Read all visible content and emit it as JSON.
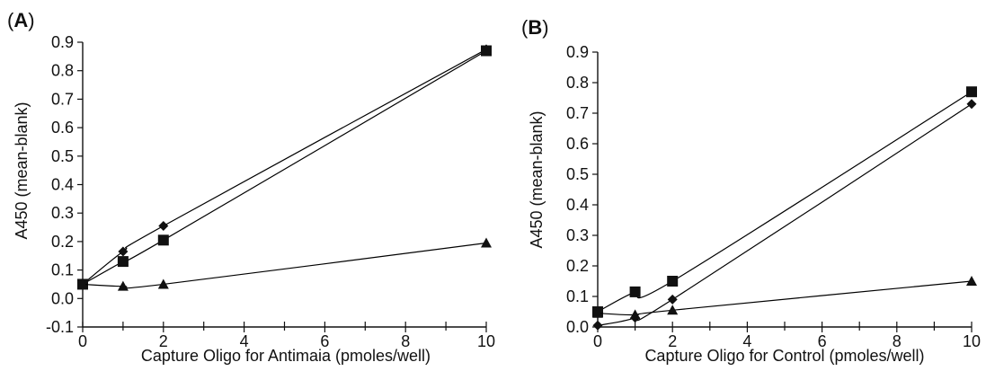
{
  "panels": [
    {
      "label_open": "(",
      "label_letter": "A",
      "label_close": ")"
    },
    {
      "label_open": "(",
      "label_letter": "B",
      "label_close": ")"
    }
  ],
  "chart_data": [
    {
      "type": "line",
      "xlabel": "Capture Oligo for Antimaia (pmoles/well)",
      "ylabel": "A450 (mean-blank)",
      "xlim": [
        0,
        10
      ],
      "ylim": [
        -0.1,
        0.9
      ],
      "xticks": [
        0,
        2,
        4,
        6,
        8,
        10
      ],
      "yticks": [
        -0.1,
        0.0,
        0.1,
        0.2,
        0.3,
        0.4,
        0.5,
        0.6,
        0.7,
        0.8,
        0.9
      ],
      "ytick_labels": [
        "-0.1",
        "0.0",
        "0.1",
        "0.2",
        "0.3",
        "0.4",
        "0.5",
        "0.6",
        "0.7",
        "0.8",
        "0.9"
      ],
      "x": [
        0,
        1,
        2,
        10
      ],
      "series": [
        {
          "marker": "diamond",
          "values": [
            0.05,
            0.165,
            0.255,
            0.875
          ]
        },
        {
          "marker": "square",
          "values": [
            0.05,
            0.13,
            0.205,
            0.87
          ]
        },
        {
          "marker": "triangle",
          "values": [
            0.05,
            0.043,
            0.05,
            0.195
          ]
        }
      ],
      "line_color": "#000000",
      "grid": false
    },
    {
      "type": "line",
      "xlabel": "Capture Oligo for Control (pmoles/well)",
      "ylabel": "A450 (mean-blank)",
      "xlim": [
        0,
        10
      ],
      "ylim": [
        0.0,
        0.9
      ],
      "xticks": [
        0,
        2,
        4,
        6,
        8,
        10
      ],
      "yticks": [
        0.0,
        0.1,
        0.2,
        0.3,
        0.4,
        0.5,
        0.6,
        0.7,
        0.8,
        0.9
      ],
      "ytick_labels": [
        "0.0",
        "0.1",
        "0.2",
        "0.3",
        "0.4",
        "0.5",
        "0.6",
        "0.7",
        "0.8",
        "0.9"
      ],
      "x": [
        0,
        1,
        2,
        10
      ],
      "series": [
        {
          "marker": "diamond",
          "values": [
            0.005,
            0.03,
            0.09,
            0.73
          ]
        },
        {
          "marker": "square",
          "values": [
            0.05,
            0.115,
            0.15,
            0.77
          ]
        },
        {
          "marker": "triangle",
          "values": [
            0.045,
            0.04,
            0.055,
            0.15
          ]
        }
      ],
      "line_color": "#000000",
      "grid": false
    }
  ]
}
